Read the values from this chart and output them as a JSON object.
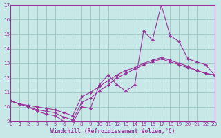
{
  "xlabel": "Windchill (Refroidissement éolien,°C)",
  "xlim": [
    0,
    23
  ],
  "ylim": [
    9,
    17
  ],
  "xticks": [
    0,
    1,
    2,
    3,
    4,
    5,
    6,
    7,
    8,
    9,
    10,
    11,
    12,
    13,
    14,
    15,
    16,
    17,
    18,
    19,
    20,
    21,
    22,
    23
  ],
  "yticks": [
    9,
    10,
    11,
    12,
    13,
    14,
    15,
    16,
    17
  ],
  "background_color": "#c8e8e8",
  "grid_color": "#a0c8c8",
  "line_color": "#993399",
  "line1_x": [
    0,
    1,
    2,
    3,
    4,
    5,
    6,
    7,
    8,
    9,
    10,
    11,
    12,
    13,
    14,
    15,
    16,
    17,
    18,
    19,
    20,
    21,
    22,
    23
  ],
  "line1_y": [
    10.4,
    10.2,
    10.0,
    9.7,
    9.5,
    9.4,
    9.0,
    8.9,
    10.0,
    9.9,
    11.5,
    12.2,
    11.5,
    11.1,
    11.5,
    15.2,
    14.6,
    17.0,
    14.9,
    14.5,
    13.3,
    13.1,
    12.9,
    12.2
  ],
  "line2_x": [
    0,
    1,
    2,
    3,
    4,
    5,
    6,
    7,
    8,
    9,
    10,
    11,
    12,
    13,
    14,
    15,
    16,
    17,
    18,
    19,
    20,
    21,
    22,
    23
  ],
  "line2_y": [
    10.4,
    10.2,
    10.0,
    9.8,
    9.7,
    9.6,
    9.3,
    9.1,
    10.3,
    10.6,
    11.1,
    11.5,
    12.0,
    12.3,
    12.6,
    12.9,
    13.1,
    13.3,
    13.1,
    12.9,
    12.7,
    12.5,
    12.3,
    12.2
  ],
  "line3_x": [
    0,
    1,
    2,
    3,
    4,
    5,
    6,
    7,
    8,
    9,
    10,
    11,
    12,
    13,
    14,
    15,
    16,
    17,
    18,
    19,
    20,
    21,
    22,
    23
  ],
  "line3_y": [
    10.4,
    10.2,
    10.1,
    10.0,
    9.9,
    9.8,
    9.6,
    9.4,
    10.7,
    11.0,
    11.4,
    11.8,
    12.2,
    12.5,
    12.7,
    13.0,
    13.2,
    13.4,
    13.2,
    13.0,
    12.8,
    12.5,
    12.3,
    12.2
  ]
}
